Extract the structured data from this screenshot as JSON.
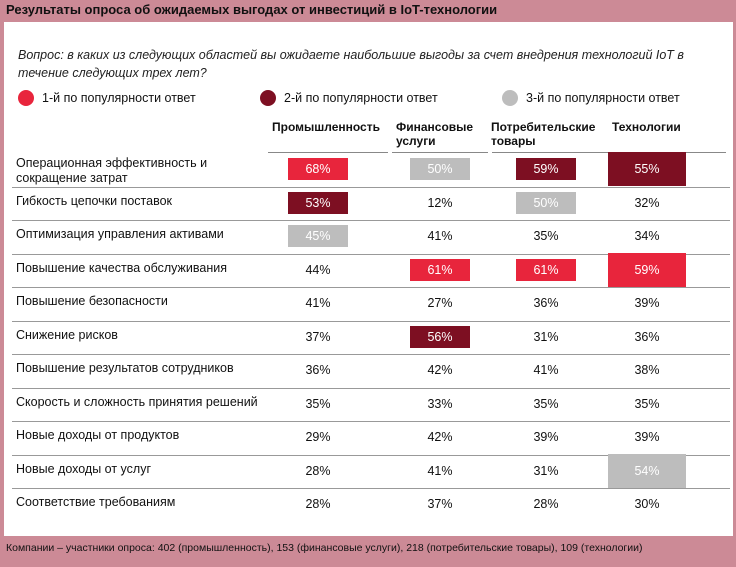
{
  "title": "Результаты опроса об ожидаемых выгодах от инвестиций в IoT-технологии",
  "question": "Вопрос: в каких из следующих областей вы ожидаете наибольшие выгоды за счет внедрения технологий IoT в течение следующих трех лет?",
  "legend": [
    {
      "label": "1-й по популярности ответ",
      "color": "#e8253c"
    },
    {
      "label": "2-й по популярности ответ",
      "color": "#7d0f22"
    },
    {
      "label": "3-й по популярности ответ",
      "color": "#bdbdbd"
    }
  ],
  "chart_data": {
    "type": "table",
    "columns": [
      "Промышленность",
      "Финансовые услуги",
      "Потребительские товары",
      "Технологии"
    ],
    "rows": [
      {
        "label": "Операционная эффективность и сокращение затрат",
        "values": [
          "68%",
          "50%",
          "59%",
          "55%"
        ],
        "ranks": [
          1,
          3,
          2,
          2
        ]
      },
      {
        "label": "Гибкость цепочки поставок",
        "values": [
          "53%",
          "12%",
          "50%",
          "32%"
        ],
        "ranks": [
          2,
          0,
          3,
          0
        ]
      },
      {
        "label": "Оптимизация управления активами",
        "values": [
          "45%",
          "41%",
          "35%",
          "34%"
        ],
        "ranks": [
          3,
          0,
          0,
          0
        ]
      },
      {
        "label": "Повышение качества обслуживания",
        "values": [
          "44%",
          "61%",
          "61%",
          "59%"
        ],
        "ranks": [
          0,
          1,
          1,
          1
        ]
      },
      {
        "label": "Повышение безопасности",
        "values": [
          "41%",
          "27%",
          "36%",
          "39%"
        ],
        "ranks": [
          0,
          0,
          0,
          0
        ]
      },
      {
        "label": "Снижение рисков",
        "values": [
          "37%",
          "56%",
          "31%",
          "36%"
        ],
        "ranks": [
          0,
          2,
          0,
          0
        ]
      },
      {
        "label": "Повышение  результатов сотрудников",
        "values": [
          "36%",
          "42%",
          "41%",
          "38%"
        ],
        "ranks": [
          0,
          0,
          0,
          0
        ]
      },
      {
        "label": "Скорость и сложность принятия  решений",
        "values": [
          "35%",
          "33%",
          "35%",
          "35%"
        ],
        "ranks": [
          0,
          0,
          0,
          0
        ]
      },
      {
        "label": "Новые доходы от продуктов",
        "values": [
          "29%",
          "42%",
          "39%",
          "39%"
        ],
        "ranks": [
          0,
          0,
          0,
          0
        ]
      },
      {
        "label": "Новые доходы от услуг",
        "values": [
          "28%",
          "41%",
          "31%",
          "54%"
        ],
        "ranks": [
          0,
          0,
          0,
          3
        ]
      },
      {
        "label": "Соответствие требованиям",
        "values": [
          "28%",
          "37%",
          "28%",
          "30%"
        ],
        "ranks": [
          0,
          0,
          0,
          0
        ]
      }
    ]
  },
  "footer": "Компании – участники опроса: 402 (промышленность), 153 (финансовые услуги), 218 (потребительские товары), 109  (технологии)"
}
